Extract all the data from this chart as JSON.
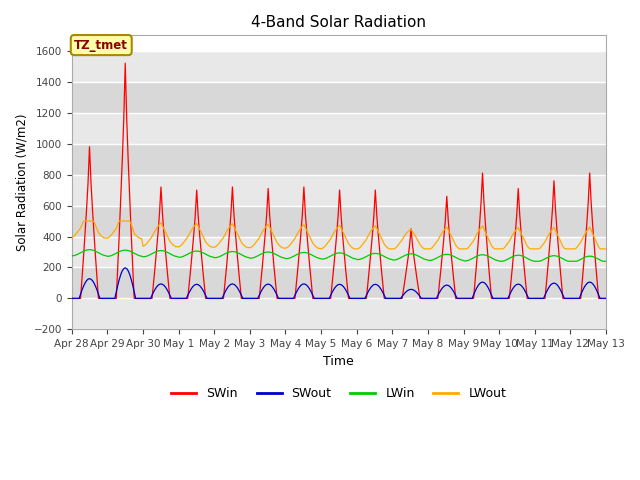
{
  "title": "4-Band Solar Radiation",
  "xlabel": "Time",
  "ylabel": "Solar Radiation (W/m2)",
  "ylim": [
    -200,
    1700
  ],
  "yticks": [
    -200,
    0,
    200,
    400,
    600,
    800,
    1000,
    1200,
    1400,
    1600
  ],
  "colors": {
    "SWin": "#ff0000",
    "SWout": "#0000cc",
    "LWin": "#00cc00",
    "LWout": "#ffaa00"
  },
  "annotation_text": "TZ_tmet",
  "annotation_color": "#880000",
  "annotation_bg": "#ffffaa",
  "annotation_edge": "#aa8800",
  "background_color": "#ffffff",
  "plot_bg": "#e8e8e8",
  "band_bg_light": "#f0f0f0",
  "band_bg_dark": "#e0e0e0",
  "n_days": 15,
  "xtick_labels": [
    "Apr 28",
    "Apr 29",
    "Apr 30",
    "May 1",
    "May 2",
    "May 3",
    "May 4",
    "May 5",
    "May 6",
    "May 7",
    "May 8",
    "May 9",
    "May 10",
    "May 11",
    "May 12",
    "May 13"
  ]
}
